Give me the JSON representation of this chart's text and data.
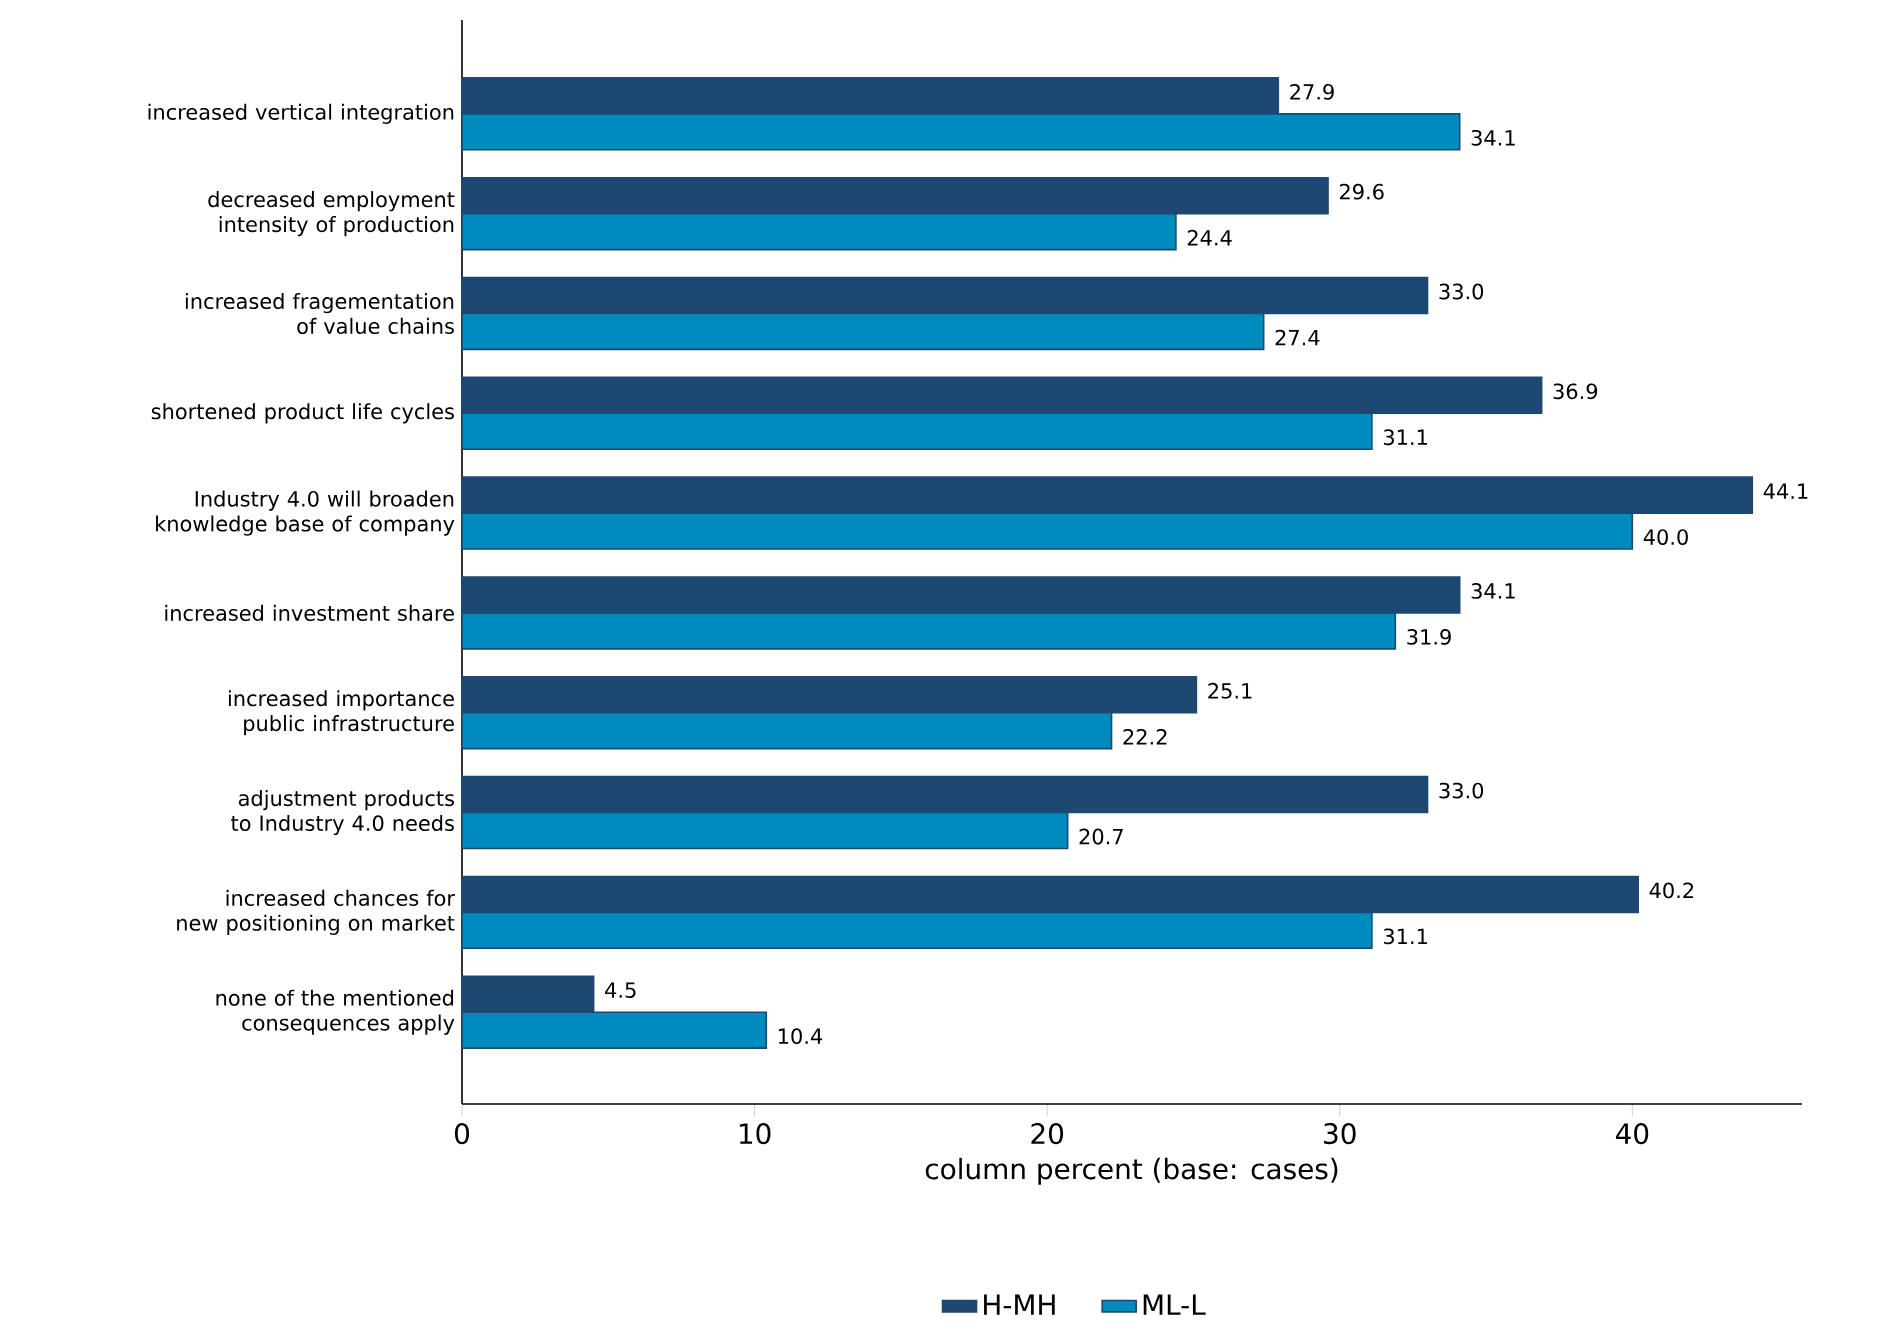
{
  "chart_data": {
    "type": "bar",
    "orientation": "horizontal",
    "xlabel": "column percent (base: cases)",
    "categories": [
      "increased vertical integration",
      "decreased employment intensity of production",
      "increased fragementation of value chains",
      "shortened product life cycles",
      "Industry 4.0 will broaden knowledge base of company",
      "increased investment share",
      "increased importance public infrastructure",
      "adjustment products to Industry 4.0 needs",
      "increased chances for new positioning on market",
      "none of the mentioned consequences apply"
    ],
    "series": [
      {
        "name": "H-MH",
        "color": "#1c4872",
        "values": [
          27.9,
          29.6,
          33.0,
          36.9,
          44.1,
          34.1,
          25.1,
          33.0,
          40.2,
          4.5
        ],
        "value_labels": [
          "27.9",
          "29.6",
          "33.0",
          "36.9",
          "44.1",
          "34.1",
          "25.1",
          "33.0",
          "40.2",
          "4.5"
        ]
      },
      {
        "name": "ML-L",
        "color": "#008bbf",
        "values": [
          34.1,
          24.4,
          27.4,
          31.1,
          40.0,
          31.9,
          22.2,
          20.7,
          31.1,
          10.4
        ],
        "value_labels": [
          "34.1",
          "24.4",
          "27.4",
          "31.1",
          "40.0",
          "31.9",
          "22.2",
          "20.7",
          "31.1",
          "10.4"
        ]
      }
    ],
    "xlim": [
      0,
      45.8
    ],
    "xticks": [
      0,
      10,
      20,
      30,
      40
    ],
    "legend": "bottom"
  }
}
